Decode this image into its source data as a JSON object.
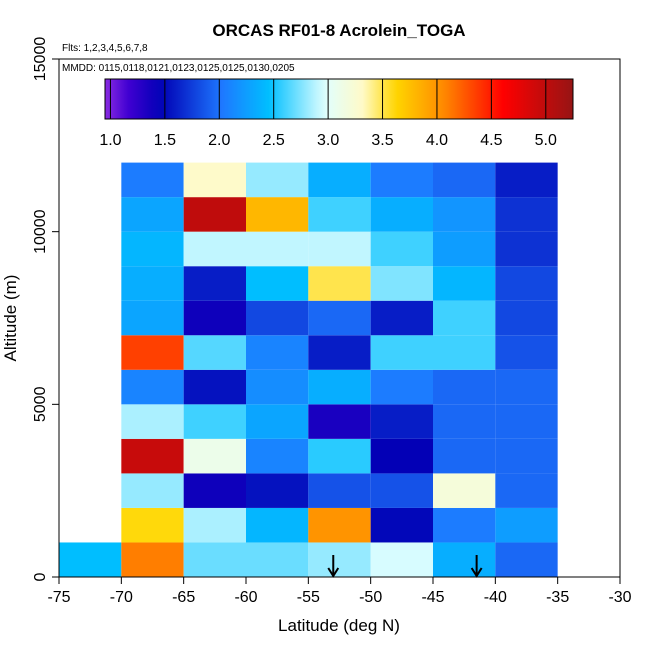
{
  "chart_data": {
    "type": "heatmap",
    "title": "ORCAS RF01-8 Acrolein_TOGA",
    "annotations": {
      "flights": "Flts: 1,2,3,4,5,6,7,8",
      "dates": "MMDD: 0115,0118,0121,0123,0125,0125,0130,0205"
    },
    "xlabel": "Latitude (deg N)",
    "ylabel": "Altitude (m)",
    "xlim": [
      -75,
      -30
    ],
    "ylim": [
      0,
      15000
    ],
    "x_ticks": [
      -75,
      -70,
      -65,
      -60,
      -55,
      -50,
      -45,
      -40,
      -35,
      -30
    ],
    "x_tick_labels": [
      "-75",
      "-70",
      "-65",
      "-60",
      "-55",
      "-50",
      "-45",
      "-40",
      "-35",
      "-30"
    ],
    "y_ticks": [
      0,
      5000,
      10000,
      15000
    ],
    "y_tick_labels": [
      "0",
      "5000",
      "10000",
      "15000"
    ],
    "colorbar": {
      "min": 0.95,
      "max": 5.25,
      "ticks": [
        1.0,
        1.5,
        2.0,
        2.5,
        3.0,
        3.5,
        4.0,
        4.5,
        5.0
      ],
      "tick_labels": [
        "1.0",
        "1.5",
        "2.0",
        "2.5",
        "3.0",
        "3.5",
        "4.0",
        "4.5",
        "5.0"
      ]
    },
    "lat_bin_edges": [
      -75,
      -70,
      -65,
      -60,
      -55,
      -50,
      -45,
      -40,
      -35
    ],
    "alt_bin_edges": [
      0,
      1000,
      2000,
      3000,
      4000,
      5000,
      6000,
      7000,
      8000,
      9000,
      10000,
      11000,
      12000
    ],
    "grid_note": "values[row][col]; row 0 = 0-1000 m, col 0 = -75 to -70 deg; null = no data",
    "values": [
      [
        2.45,
        4.1,
        2.7,
        2.7,
        2.8,
        2.95,
        2.35,
        1.95
      ],
      [
        null,
        3.6,
        2.85,
        2.4,
        4.0,
        1.5,
        2.05,
        2.25
      ],
      [
        null,
        2.8,
        1.4,
        1.55,
        1.85,
        1.85,
        3.2,
        1.95
      ],
      [
        null,
        4.95,
        3.1,
        2.1,
        2.55,
        1.45,
        1.95,
        1.95
      ],
      [
        null,
        2.85,
        2.6,
        2.3,
        1.35,
        1.6,
        1.95,
        1.95
      ],
      [
        null,
        2.1,
        1.55,
        2.15,
        2.35,
        2.05,
        1.95,
        1.95
      ],
      [
        null,
        4.35,
        2.65,
        2.1,
        1.6,
        2.6,
        2.6,
        1.85
      ],
      [
        null,
        2.3,
        1.4,
        1.8,
        1.95,
        1.6,
        2.6,
        1.8
      ],
      [
        null,
        2.35,
        1.6,
        2.45,
        3.5,
        2.75,
        2.4,
        1.8
      ],
      [
        null,
        2.4,
        2.9,
        2.9,
        2.9,
        2.6,
        2.25,
        1.7
      ],
      [
        null,
        2.3,
        5.0,
        3.8,
        2.6,
        2.35,
        2.2,
        1.7
      ],
      [
        null,
        2.05,
        3.3,
        2.8,
        2.35,
        2.05,
        1.95,
        1.6
      ]
    ],
    "arrows_lat": [
      -53,
      -41.5
    ]
  }
}
